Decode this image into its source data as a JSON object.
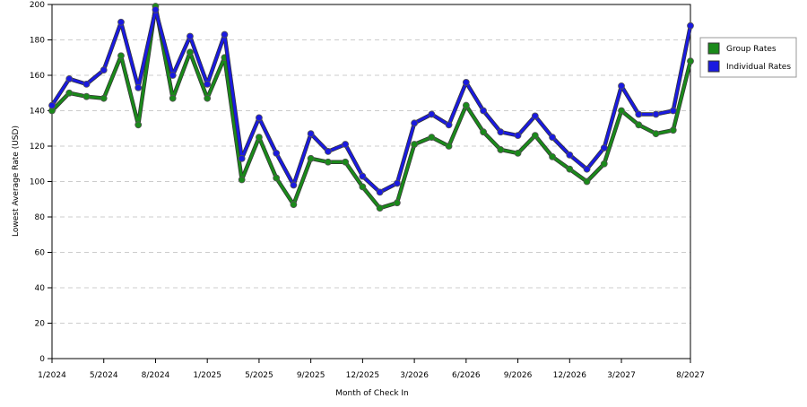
{
  "chart_data": {
    "type": "line",
    "x_label": "Month of Check In",
    "y_label": "Lowest Average Rate (USD)",
    "categories": [
      "1/2024",
      null,
      null,
      "5/2024",
      null,
      null,
      "8/2024",
      null,
      null,
      "1/2025",
      null,
      null,
      "5/2025",
      null,
      null,
      "9/2025",
      null,
      null,
      "12/2025",
      null,
      null,
      "3/2026",
      null,
      null,
      "6/2026",
      null,
      null,
      "9/2026",
      null,
      null,
      "12/2026",
      null,
      null,
      "3/2027",
      null,
      null,
      null,
      "8/2027"
    ],
    "series": [
      {
        "name": "Group Rates",
        "color": "#1a8a1a",
        "values": [
          140,
          150,
          148,
          147,
          171,
          132,
          199,
          147,
          173,
          147,
          170,
          101,
          125,
          102,
          87,
          113,
          111,
          111,
          97,
          85,
          88,
          121,
          125,
          120,
          143,
          128,
          118,
          116,
          126,
          114,
          107,
          100,
          110,
          140,
          132,
          127,
          129,
          168
        ]
      },
      {
        "name": "Individual Rates",
        "color": "#1a1ae0",
        "values": [
          143,
          158,
          155,
          163,
          190,
          153,
          197,
          160,
          182,
          155,
          183,
          113,
          136,
          116,
          98,
          127,
          117,
          121,
          103,
          94,
          99,
          133,
          138,
          132,
          156,
          140,
          128,
          126,
          137,
          125,
          115,
          107,
          119,
          154,
          138,
          138,
          140,
          188
        ]
      }
    ],
    "ylim": [
      0,
      200
    ],
    "yticks": [
      0,
      20,
      40,
      60,
      80,
      100,
      120,
      140,
      160,
      180,
      200
    ],
    "grid": true
  }
}
